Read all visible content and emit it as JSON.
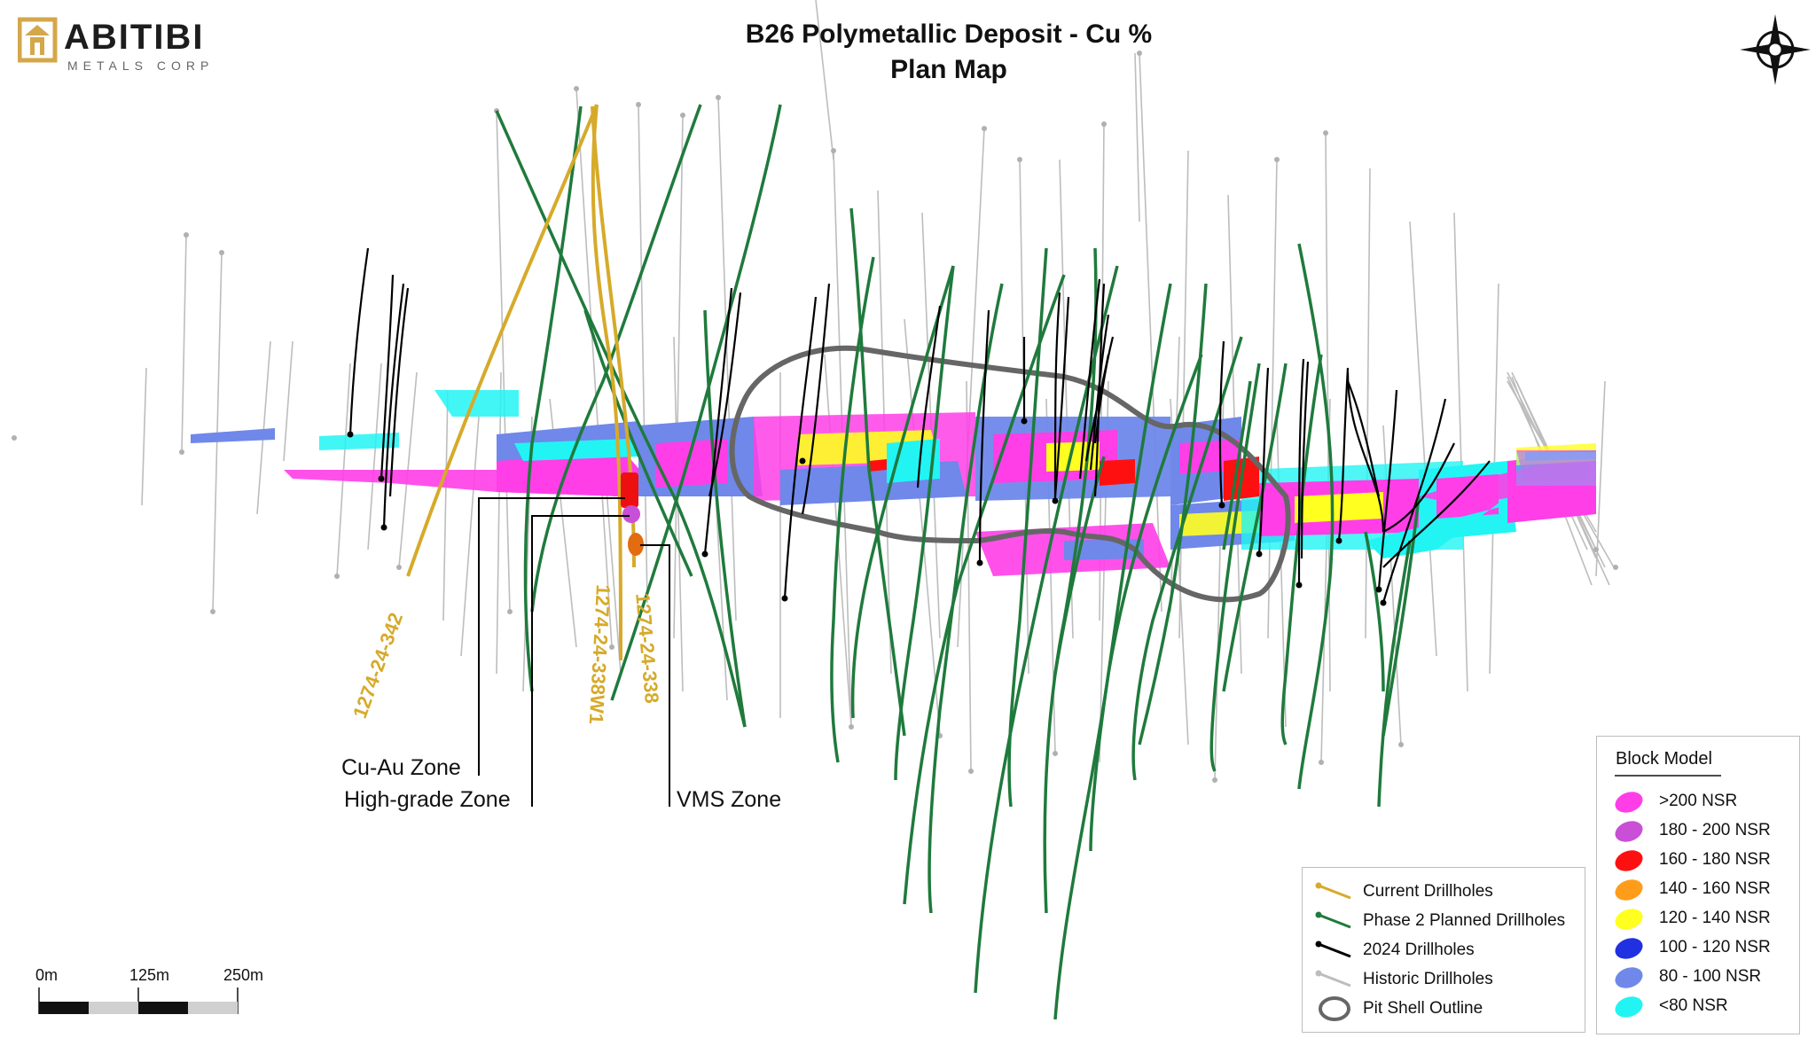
{
  "header": {
    "logo_name": "ABITIBI",
    "logo_sub": "METALS CORP",
    "title_line1": "B26 Polymetallic Deposit - Cu %",
    "title_line2": "Plan Map",
    "compass_icon": "north-arrow-compass-icon"
  },
  "zones": {
    "cu_au": "Cu-Au Zone",
    "high_grade": "High-grade Zone",
    "vms": "VMS Zone"
  },
  "drillhole_labels": {
    "h342": "1274-24-342",
    "h338w1": "1274-24-338W1",
    "h338": "1274-24-338"
  },
  "drillhole_legend": {
    "items": [
      {
        "label": "Current Drillholes",
        "color": "#d6aa2a"
      },
      {
        "label": "Phase 2 Planned Drillholes",
        "color": "#1f7a3c"
      },
      {
        "label": "2024 Drillholes",
        "color": "#000000"
      },
      {
        "label": "Historic Drillholes",
        "color": "#bdbdbd"
      },
      {
        "label": "Pit Shell Outline",
        "color": "#666666"
      }
    ]
  },
  "block_model_legend": {
    "title": "Block Model",
    "items": [
      {
        "label": ">200 NSR",
        "color": "#ff3ee8"
      },
      {
        "label": "180 - 200 NSR",
        "color": "#c94fd6"
      },
      {
        "label": "160 - 180 NSR",
        "color": "#ff1010"
      },
      {
        "label": "140 - 160 NSR",
        "color": "#ff9c1a"
      },
      {
        "label": "120 - 140 NSR",
        "color": "#ffff20"
      },
      {
        "label": "100 - 120 NSR",
        "color": "#2130e0"
      },
      {
        "label": "80 - 100 NSR",
        "color": "#6f88ea"
      },
      {
        "label": "<80 NSR",
        "color": "#22f4f4"
      }
    ]
  },
  "scale_bar": {
    "labels": [
      "0m",
      "125m",
      "250m"
    ]
  }
}
